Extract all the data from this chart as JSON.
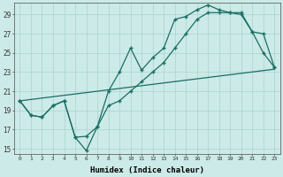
{
  "xlabel": "Humidex (Indice chaleur)",
  "background_color": "#cceae7",
  "grid_color": "#aad4d0",
  "line_color": "#1a6e64",
  "xlim": [
    -0.5,
    23.5
  ],
  "ylim": [
    14.5,
    30.2
  ],
  "yticks": [
    15,
    17,
    19,
    21,
    23,
    25,
    27,
    29
  ],
  "xticks": [
    0,
    1,
    2,
    3,
    4,
    5,
    6,
    7,
    8,
    9,
    10,
    11,
    12,
    13,
    14,
    15,
    16,
    17,
    18,
    19,
    20,
    21,
    22,
    23
  ],
  "series1_x": [
    0,
    1,
    2,
    3,
    4,
    5,
    6,
    7,
    8,
    9,
    10,
    11,
    12,
    13,
    14,
    15,
    16,
    17,
    18,
    19,
    20,
    21,
    22,
    23
  ],
  "series1_y": [
    20.0,
    18.5,
    18.3,
    19.5,
    20.0,
    16.2,
    16.3,
    17.3,
    19.5,
    20.0,
    21.0,
    22.0,
    23.0,
    24.0,
    25.5,
    27.0,
    28.5,
    29.2,
    29.2,
    29.2,
    29.0,
    27.2,
    25.0,
    23.5
  ],
  "series2_x": [
    0,
    1,
    2,
    3,
    4,
    5,
    6,
    7,
    8,
    9,
    10,
    11,
    12,
    13,
    14,
    15,
    16,
    17,
    18,
    19,
    20,
    21,
    22,
    23
  ],
  "series2_y": [
    20.0,
    18.5,
    18.3,
    19.5,
    20.0,
    16.2,
    14.8,
    17.3,
    21.0,
    23.0,
    25.5,
    23.2,
    24.5,
    25.5,
    28.5,
    28.8,
    29.5,
    30.0,
    29.5,
    29.2,
    29.2,
    27.2,
    27.0,
    23.5
  ],
  "series3_x": [
    0,
    23
  ],
  "series3_y": [
    20.0,
    23.3
  ]
}
